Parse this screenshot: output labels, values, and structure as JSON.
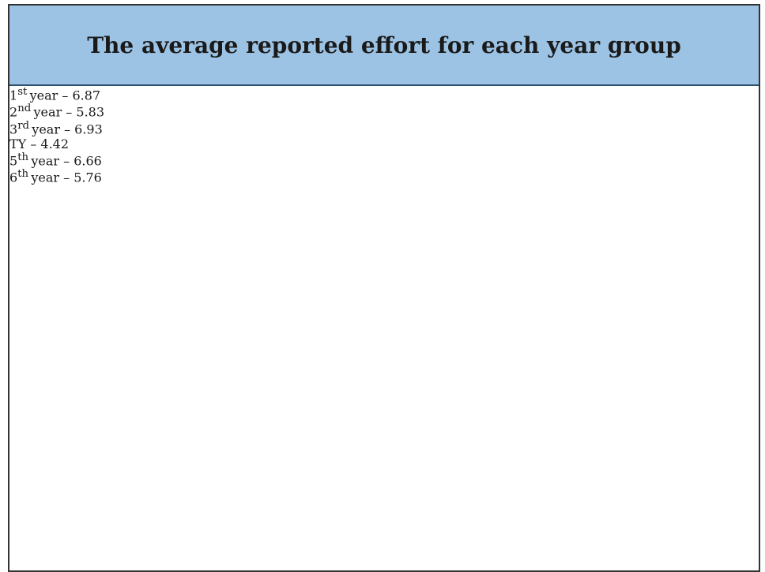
{
  "header": {
    "title": "The average reported effort for each year group"
  },
  "rows": [
    {
      "number": "1",
      "suffix": "st",
      "text": "year – 6.87"
    },
    {
      "number": "2",
      "suffix": "nd",
      "text": "year – 5.83"
    },
    {
      "number": "3",
      "suffix": "rd",
      "text": "year – 6.93"
    },
    {
      "text": "TY – 4.42"
    },
    {
      "number": "5",
      "suffix": "th",
      "text": "year – 6.66"
    },
    {
      "number": "6",
      "suffix": "th",
      "text": "year – 5.76"
    }
  ]
}
